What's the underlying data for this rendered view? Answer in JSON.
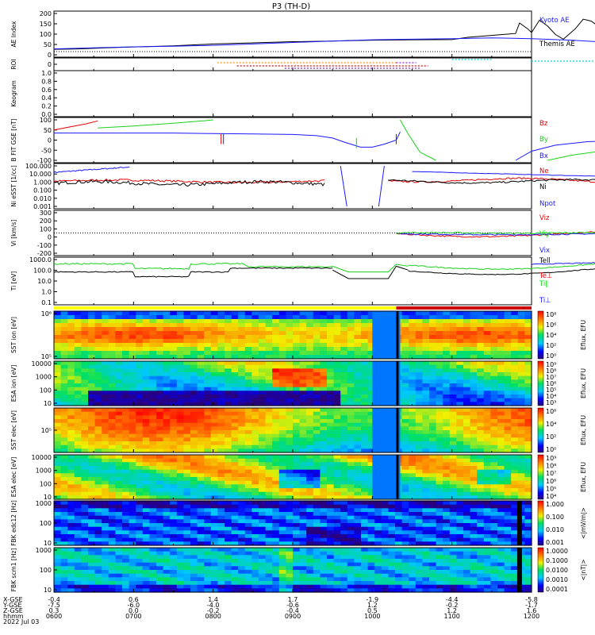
{
  "title": "P3 (TH-D)",
  "colors": {
    "blue": "#1a1aff",
    "red": "#e00000",
    "green": "#19d119",
    "black": "#000000",
    "orange": "#ff8c00",
    "purple": "#8b2be2",
    "cyan": "#00d0d0"
  },
  "chart_data": {
    "type": "line",
    "x": {
      "tick_labels": [
        "0600",
        "0700",
        "0800",
        "0900",
        "1000",
        "1100",
        "1200"
      ],
      "row_labels": [
        "X-GSE",
        "Y-GSE",
        "Z-GSE",
        "hhmm",
        "2022 Jul 03"
      ],
      "xgse": [
        "-0.4",
        "0.6",
        "1.4",
        "1.7",
        "-1.9",
        "-4.4",
        "-5.8"
      ],
      "ygse": [
        "-7.5",
        "-6.0",
        "-4.0",
        "-0.6",
        "1.2",
        "-0.2",
        "-1.7"
      ],
      "zgse": [
        "0.3",
        "0.0",
        "-0.2",
        "-0.4",
        "0.5",
        "1.2",
        "1.6"
      ]
    },
    "panels": [
      {
        "id": "ae",
        "ylabel": "AE Index",
        "yticks": [
          "200",
          "150",
          "100",
          "50",
          "0"
        ],
        "ylim": [
          -20,
          200
        ],
        "legend": [
          "Kyoto AE",
          "Themis AE"
        ],
        "series": [
          {
            "name": "Themis AE",
            "color": "#000000",
            "values": [
              [
                0,
                12
              ],
              [
                0.3,
                14
              ],
              [
                0.8,
                22
              ],
              [
                1.5,
                30
              ],
              [
                2,
                40
              ],
              [
                2.5,
                46
              ],
              [
                3,
                52
              ],
              [
                3.5,
                55
              ],
              [
                4,
                60
              ],
              [
                4.5,
                62
              ],
              [
                5,
                63
              ],
              [
                5.2,
                75
              ],
              [
                5.5,
                85
              ],
              [
                5.8,
                95
              ],
              [
                5.85,
                150
              ],
              [
                5.95,
                120
              ],
              [
                6.0,
                100
              ],
              [
                6.1,
                165
              ],
              [
                6.2,
                135
              ],
              [
                6.3,
                90
              ],
              [
                6.4,
                65
              ],
              [
                6.55,
                120
              ],
              [
                6.65,
                170
              ],
              [
                6.75,
                160
              ],
              [
                6.85,
                130
              ],
              [
                7,
                110
              ]
            ]
          },
          {
            "name": "Kyoto AE",
            "color": "#1a1aff",
            "values": [
              [
                0,
                14
              ],
              [
                0.5,
                20
              ],
              [
                1,
                25
              ],
              [
                1.5,
                28
              ],
              [
                2,
                33
              ],
              [
                2.5,
                40
              ],
              [
                3,
                48
              ],
              [
                3.5,
                55
              ],
              [
                4,
                62
              ],
              [
                4.5,
                65
              ],
              [
                5,
                68
              ],
              [
                5.5,
                72
              ],
              [
                6,
                68
              ],
              [
                6.5,
                60
              ],
              [
                7,
                48
              ]
            ]
          }
        ]
      },
      {
        "id": "roi",
        "ylabel": "ROI",
        "yticks": [
          "0"
        ],
        "ylim": [
          0,
          1
        ]
      },
      {
        "id": "keogram",
        "ylabel": "Keogram",
        "yticks": [
          "1.0",
          "0.8",
          "0.6",
          "0.4",
          "0.2",
          "0.0"
        ],
        "ylim": [
          0,
          1
        ]
      },
      {
        "id": "bfield",
        "ylabel": "B FIT GSE [nT]",
        "yticks": [
          "100",
          "50",
          "0",
          "-50",
          "-100"
        ],
        "ylim": [
          -100,
          100
        ],
        "legend": [
          "Bz",
          "By",
          "Bx"
        ],
        "series": [
          {
            "name": "Bz",
            "color": "#e00000",
            "values": [
              [
                0,
                50
              ],
              [
                0.2,
                65
              ],
              [
                0.4,
                80
              ],
              [
                0.55,
                95
              ]
            ]
          },
          {
            "name": "By",
            "color": "#19d119",
            "values": [
              [
                0.55,
                60
              ],
              [
                1.0,
                70
              ],
              [
                1.5,
                83
              ],
              [
                1.9,
                96
              ],
              [
                2.0,
                100
              ]
            ]
          },
          {
            "name": "Bx",
            "color": "#1a1aff",
            "values": [
              [
                0,
                35
              ],
              [
                1.5,
                35
              ],
              [
                2.0,
                32
              ],
              [
                2.5,
                30
              ],
              [
                3,
                28
              ],
              [
                3.3,
                22
              ],
              [
                3.5,
                10
              ],
              [
                3.65,
                -10
              ],
              [
                3.85,
                -35
              ],
              [
                4.0,
                -35
              ],
              [
                4.15,
                -20
              ],
              [
                4.3,
                0
              ],
              [
                4.35,
                40
              ]
            ]
          },
          {
            "name": "By-late",
            "color": "#19d119",
            "values": [
              [
                4.35,
                100
              ],
              [
                4.45,
                30
              ],
              [
                4.6,
                -60
              ],
              [
                4.8,
                -100
              ]
            ]
          },
          {
            "name": "Bx-late",
            "color": "#1a1aff",
            "values": [
              [
                5.8,
                -100
              ],
              [
                6.0,
                -55
              ],
              [
                6.3,
                -25
              ],
              [
                6.7,
                -8
              ],
              [
                7,
                -4
              ]
            ]
          },
          {
            "name": "By-end",
            "color": "#19d119",
            "values": [
              [
                6.2,
                -100
              ],
              [
                6.5,
                -75
              ],
              [
                6.8,
                -58
              ],
              [
                7,
                -50
              ]
            ]
          }
        ]
      },
      {
        "id": "density",
        "ylabel": "Ni eSST [1/cc]",
        "yticks": [
          "100.000",
          "10.000",
          "1.000",
          "0.100",
          "0.010",
          "0.001"
        ],
        "ylim_log": [
          -3,
          2
        ],
        "legend": [
          "Ne",
          "Ni",
          "Npot"
        ]
      },
      {
        "id": "velocity",
        "ylabel": "Vi [km/s]",
        "yticks": [
          "300",
          "200",
          "100",
          "0",
          "-100",
          "-200"
        ],
        "ylim": [
          -300,
          300
        ],
        "legend": [
          "Viz",
          "Viy",
          "Vix"
        ]
      },
      {
        "id": "temp",
        "ylabel": "Ti [eV]",
        "yticks": [
          "1000.0",
          "100.0",
          "10.0",
          "1.0",
          "0.1"
        ],
        "ylim_log": [
          -1,
          3.5
        ],
        "legend": [
          "Tell",
          "Te⊥",
          "Ti∥",
          "Ti⊥"
        ]
      },
      {
        "id": "sst_ion",
        "ylabel": "SST ion [eV]",
        "yticks": [
          "10⁶",
          "10⁵"
        ],
        "cbar_label": "Eflux, EFU",
        "cbar_ticks": [
          "10⁸",
          "10⁶",
          "10⁴",
          "10²",
          "10⁰"
        ]
      },
      {
        "id": "esa_ion",
        "ylabel": "ESA ion [eV]",
        "yticks": [
          "10000",
          "1000",
          "100",
          "10"
        ],
        "cbar_label": "Eflux, EFU",
        "cbar_ticks": [
          "10⁹",
          "10⁸",
          "10⁷",
          "10⁶",
          "10⁵",
          "10⁴",
          "10³"
        ]
      },
      {
        "id": "sst_elec",
        "ylabel": "SST elec [eV]",
        "yticks": [
          "10⁵"
        ],
        "cbar_label": "Eflux, EFU",
        "cbar_ticks": [
          "10⁶",
          "10⁴",
          "10²",
          "10⁰"
        ]
      },
      {
        "id": "esa_elec",
        "ylabel": "ESA elec [eV]",
        "yticks": [
          "10000",
          "1000",
          "100",
          "10"
        ],
        "cbar_label": "Eflux, EFU",
        "cbar_ticks": [
          "10⁹",
          "10⁸",
          "10⁷",
          "10⁶",
          "10⁵",
          "10⁴"
        ]
      },
      {
        "id": "fbk_e",
        "ylabel": "FBK edc12 [Hz]",
        "yticks": [
          "1000",
          "100",
          "10"
        ],
        "cbar_label": "<|mV/m|>",
        "cbar_ticks": [
          "1.000",
          "0.100",
          "0.010",
          "0.001"
        ]
      },
      {
        "id": "fbk_b",
        "ylabel": "FBK scm1 [Hz]",
        "yticks": [
          "1000",
          "100",
          "10"
        ],
        "cbar_label": "<|nT|>",
        "cbar_ticks": [
          "1.0000",
          "0.1000",
          "0.0100",
          "0.0010",
          "0.0001"
        ]
      }
    ]
  }
}
